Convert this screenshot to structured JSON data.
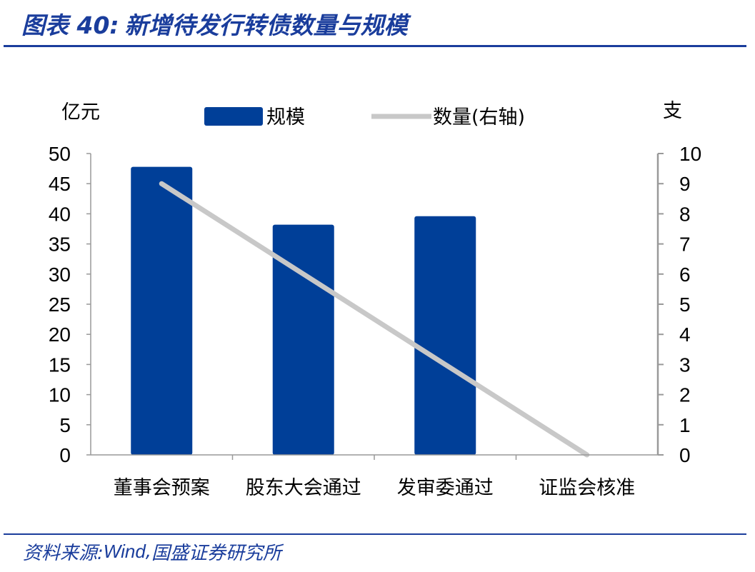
{
  "header": {
    "figure_number": "图表 40:",
    "title": "新增待发行转债数量与规模"
  },
  "footer": {
    "source_label": "资料来源:",
    "source_name": "Wind",
    "source_sep": ",",
    "source_org": "国盛证券研究所"
  },
  "colors": {
    "brand": "#1a3d9c",
    "bar": "#003f98",
    "line": "#c8c8c8",
    "axis": "#999999"
  },
  "chart_data": {
    "type": "bar",
    "title": "新增待发行转债数量与规模",
    "categories": [
      "董事会预案",
      "股东大会通过",
      "发审委通过",
      "证监会核准"
    ],
    "ylabel": "亿元",
    "y2label": "支",
    "ylim": [
      0,
      50
    ],
    "y2lim": [
      0,
      10
    ],
    "yticks": [
      0,
      5,
      10,
      15,
      20,
      25,
      30,
      35,
      40,
      45,
      50
    ],
    "y2ticks": [
      0,
      1,
      2,
      3,
      4,
      5,
      6,
      7,
      8,
      9,
      10
    ],
    "grid": false,
    "legend_position": "top-center",
    "series": [
      {
        "name": "规模",
        "kind": "bar",
        "axis": "left",
        "values": [
          47.8,
          38.2,
          39.6,
          0
        ]
      },
      {
        "name": "数量(右轴)",
        "kind": "line",
        "axis": "right",
        "values": [
          9,
          6,
          3,
          0
        ]
      }
    ]
  }
}
